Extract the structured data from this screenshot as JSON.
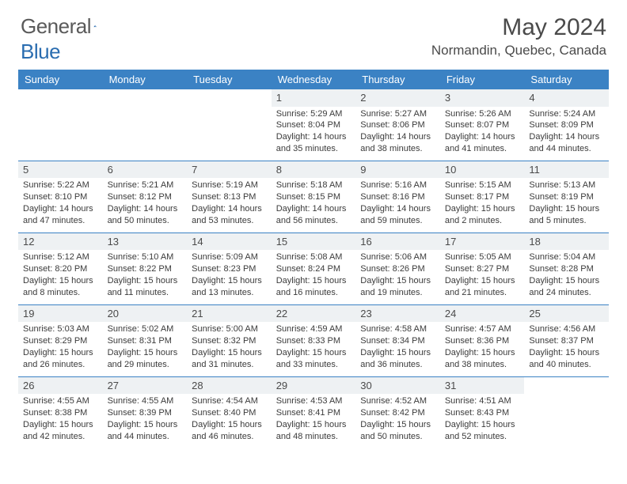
{
  "logo": {
    "text1": "General",
    "text2": "Blue"
  },
  "title": "May 2024",
  "location": "Normandin, Quebec, Canada",
  "colors": {
    "header_bg": "#3b82c4",
    "header_text": "#ffffff",
    "daynum_bg": "#eef1f3",
    "border": "#3b82c4",
    "text": "#3b3b3b",
    "logo_blue": "#2a6db0"
  },
  "weekdays": [
    "Sunday",
    "Monday",
    "Tuesday",
    "Wednesday",
    "Thursday",
    "Friday",
    "Saturday"
  ],
  "weeks": [
    [
      {
        "empty": true
      },
      {
        "empty": true
      },
      {
        "empty": true
      },
      {
        "day": "1",
        "sunrise": "Sunrise: 5:29 AM",
        "sunset": "Sunset: 8:04 PM",
        "daylight1": "Daylight: 14 hours",
        "daylight2": "and 35 minutes."
      },
      {
        "day": "2",
        "sunrise": "Sunrise: 5:27 AM",
        "sunset": "Sunset: 8:06 PM",
        "daylight1": "Daylight: 14 hours",
        "daylight2": "and 38 minutes."
      },
      {
        "day": "3",
        "sunrise": "Sunrise: 5:26 AM",
        "sunset": "Sunset: 8:07 PM",
        "daylight1": "Daylight: 14 hours",
        "daylight2": "and 41 minutes."
      },
      {
        "day": "4",
        "sunrise": "Sunrise: 5:24 AM",
        "sunset": "Sunset: 8:09 PM",
        "daylight1": "Daylight: 14 hours",
        "daylight2": "and 44 minutes."
      }
    ],
    [
      {
        "day": "5",
        "sunrise": "Sunrise: 5:22 AM",
        "sunset": "Sunset: 8:10 PM",
        "daylight1": "Daylight: 14 hours",
        "daylight2": "and 47 minutes."
      },
      {
        "day": "6",
        "sunrise": "Sunrise: 5:21 AM",
        "sunset": "Sunset: 8:12 PM",
        "daylight1": "Daylight: 14 hours",
        "daylight2": "and 50 minutes."
      },
      {
        "day": "7",
        "sunrise": "Sunrise: 5:19 AM",
        "sunset": "Sunset: 8:13 PM",
        "daylight1": "Daylight: 14 hours",
        "daylight2": "and 53 minutes."
      },
      {
        "day": "8",
        "sunrise": "Sunrise: 5:18 AM",
        "sunset": "Sunset: 8:15 PM",
        "daylight1": "Daylight: 14 hours",
        "daylight2": "and 56 minutes."
      },
      {
        "day": "9",
        "sunrise": "Sunrise: 5:16 AM",
        "sunset": "Sunset: 8:16 PM",
        "daylight1": "Daylight: 14 hours",
        "daylight2": "and 59 minutes."
      },
      {
        "day": "10",
        "sunrise": "Sunrise: 5:15 AM",
        "sunset": "Sunset: 8:17 PM",
        "daylight1": "Daylight: 15 hours",
        "daylight2": "and 2 minutes."
      },
      {
        "day": "11",
        "sunrise": "Sunrise: 5:13 AM",
        "sunset": "Sunset: 8:19 PM",
        "daylight1": "Daylight: 15 hours",
        "daylight2": "and 5 minutes."
      }
    ],
    [
      {
        "day": "12",
        "sunrise": "Sunrise: 5:12 AM",
        "sunset": "Sunset: 8:20 PM",
        "daylight1": "Daylight: 15 hours",
        "daylight2": "and 8 minutes."
      },
      {
        "day": "13",
        "sunrise": "Sunrise: 5:10 AM",
        "sunset": "Sunset: 8:22 PM",
        "daylight1": "Daylight: 15 hours",
        "daylight2": "and 11 minutes."
      },
      {
        "day": "14",
        "sunrise": "Sunrise: 5:09 AM",
        "sunset": "Sunset: 8:23 PM",
        "daylight1": "Daylight: 15 hours",
        "daylight2": "and 13 minutes."
      },
      {
        "day": "15",
        "sunrise": "Sunrise: 5:08 AM",
        "sunset": "Sunset: 8:24 PM",
        "daylight1": "Daylight: 15 hours",
        "daylight2": "and 16 minutes."
      },
      {
        "day": "16",
        "sunrise": "Sunrise: 5:06 AM",
        "sunset": "Sunset: 8:26 PM",
        "daylight1": "Daylight: 15 hours",
        "daylight2": "and 19 minutes."
      },
      {
        "day": "17",
        "sunrise": "Sunrise: 5:05 AM",
        "sunset": "Sunset: 8:27 PM",
        "daylight1": "Daylight: 15 hours",
        "daylight2": "and 21 minutes."
      },
      {
        "day": "18",
        "sunrise": "Sunrise: 5:04 AM",
        "sunset": "Sunset: 8:28 PM",
        "daylight1": "Daylight: 15 hours",
        "daylight2": "and 24 minutes."
      }
    ],
    [
      {
        "day": "19",
        "sunrise": "Sunrise: 5:03 AM",
        "sunset": "Sunset: 8:29 PM",
        "daylight1": "Daylight: 15 hours",
        "daylight2": "and 26 minutes."
      },
      {
        "day": "20",
        "sunrise": "Sunrise: 5:02 AM",
        "sunset": "Sunset: 8:31 PM",
        "daylight1": "Daylight: 15 hours",
        "daylight2": "and 29 minutes."
      },
      {
        "day": "21",
        "sunrise": "Sunrise: 5:00 AM",
        "sunset": "Sunset: 8:32 PM",
        "daylight1": "Daylight: 15 hours",
        "daylight2": "and 31 minutes."
      },
      {
        "day": "22",
        "sunrise": "Sunrise: 4:59 AM",
        "sunset": "Sunset: 8:33 PM",
        "daylight1": "Daylight: 15 hours",
        "daylight2": "and 33 minutes."
      },
      {
        "day": "23",
        "sunrise": "Sunrise: 4:58 AM",
        "sunset": "Sunset: 8:34 PM",
        "daylight1": "Daylight: 15 hours",
        "daylight2": "and 36 minutes."
      },
      {
        "day": "24",
        "sunrise": "Sunrise: 4:57 AM",
        "sunset": "Sunset: 8:36 PM",
        "daylight1": "Daylight: 15 hours",
        "daylight2": "and 38 minutes."
      },
      {
        "day": "25",
        "sunrise": "Sunrise: 4:56 AM",
        "sunset": "Sunset: 8:37 PM",
        "daylight1": "Daylight: 15 hours",
        "daylight2": "and 40 minutes."
      }
    ],
    [
      {
        "day": "26",
        "sunrise": "Sunrise: 4:55 AM",
        "sunset": "Sunset: 8:38 PM",
        "daylight1": "Daylight: 15 hours",
        "daylight2": "and 42 minutes."
      },
      {
        "day": "27",
        "sunrise": "Sunrise: 4:55 AM",
        "sunset": "Sunset: 8:39 PM",
        "daylight1": "Daylight: 15 hours",
        "daylight2": "and 44 minutes."
      },
      {
        "day": "28",
        "sunrise": "Sunrise: 4:54 AM",
        "sunset": "Sunset: 8:40 PM",
        "daylight1": "Daylight: 15 hours",
        "daylight2": "and 46 minutes."
      },
      {
        "day": "29",
        "sunrise": "Sunrise: 4:53 AM",
        "sunset": "Sunset: 8:41 PM",
        "daylight1": "Daylight: 15 hours",
        "daylight2": "and 48 minutes."
      },
      {
        "day": "30",
        "sunrise": "Sunrise: 4:52 AM",
        "sunset": "Sunset: 8:42 PM",
        "daylight1": "Daylight: 15 hours",
        "daylight2": "and 50 minutes."
      },
      {
        "day": "31",
        "sunrise": "Sunrise: 4:51 AM",
        "sunset": "Sunset: 8:43 PM",
        "daylight1": "Daylight: 15 hours",
        "daylight2": "and 52 minutes."
      },
      {
        "empty": true
      }
    ]
  ]
}
